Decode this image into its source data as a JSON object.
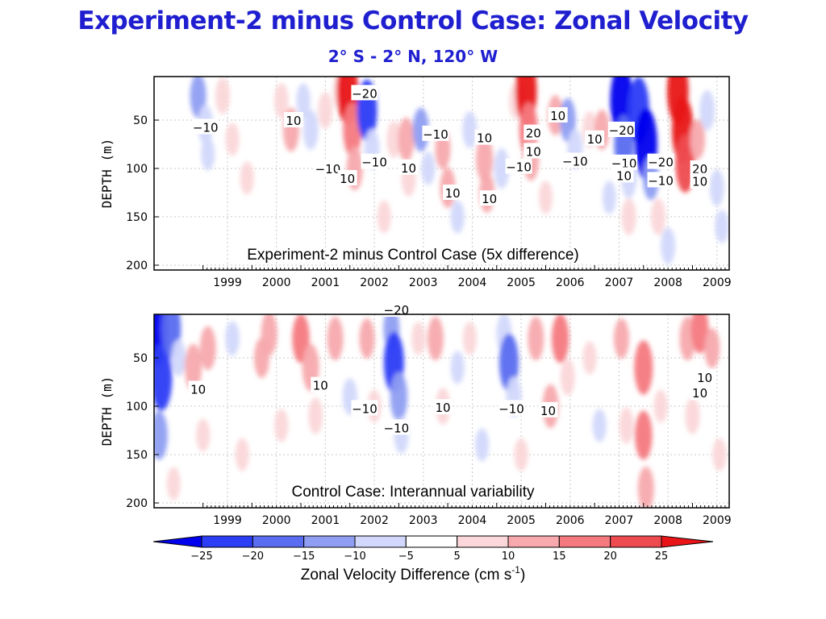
{
  "slide": {
    "title": "Experiment-2 minus Control Case:  Zonal Velocity",
    "subtitle": "2° S - 2° N, 120° W"
  },
  "colorbar": {
    "levels": [
      -25,
      -20,
      -15,
      -10,
      -5,
      5,
      10,
      15,
      20,
      25
    ],
    "colors": [
      "#0000ee",
      "#2b3df5",
      "#5a6cf0",
      "#8f9ef2",
      "#d2d8fb",
      "#ffffff",
      "#fbd7d9",
      "#f7a9ad",
      "#f47a7f",
      "#ee4b50",
      "#e81418"
    ],
    "title_main": "Zonal Velocity Difference (cm s",
    "title_sup": "-1",
    "title_end": ")"
  },
  "chart_data": [
    {
      "type": "heatmap",
      "annotation": "Experiment-2 minus Control Case (5x difference)",
      "ylabel": "DEPTH (m)",
      "xlabel": "",
      "x_ticks": [
        "1999",
        "2000",
        "2001",
        "2002",
        "2003",
        "2004",
        "2005",
        "2006",
        "2007",
        "2008",
        "2009"
      ],
      "y_ticks": [
        50,
        100,
        150,
        200
      ],
      "xlim": [
        1998.0,
        2009.75
      ],
      "ylim": [
        205,
        5
      ],
      "grid": true,
      "cells": [
        {
          "x": 1998.9,
          "depth": 25,
          "value": -12
        },
        {
          "x": 1999.05,
          "depth": 55,
          "value": -10
        },
        {
          "x": 1999.1,
          "depth": 85,
          "value": -6
        },
        {
          "x": 1999.4,
          "depth": 25,
          "value": 8
        },
        {
          "x": 1999.6,
          "depth": 70,
          "value": 6
        },
        {
          "x": 1999.9,
          "depth": 110,
          "value": 6
        },
        {
          "x": 2000.6,
          "depth": 30,
          "value": 7
        },
        {
          "x": 2000.8,
          "depth": 60,
          "value": 12
        },
        {
          "x": 2001.05,
          "depth": 30,
          "value": -7
        },
        {
          "x": 2001.2,
          "depth": 60,
          "value": -10
        },
        {
          "x": 2001.5,
          "depth": 40,
          "value": 8
        },
        {
          "x": 2001.8,
          "depth": 20,
          "value": 8
        },
        {
          "x": 2001.95,
          "depth": 20,
          "value": 25
        },
        {
          "x": 2002.05,
          "depth": 60,
          "value": 18
        },
        {
          "x": 2002.1,
          "depth": 100,
          "value": 12
        },
        {
          "x": 2002.35,
          "depth": 40,
          "value": -22
        },
        {
          "x": 2002.45,
          "depth": 80,
          "value": -10
        },
        {
          "x": 2002.7,
          "depth": 150,
          "value": 6
        },
        {
          "x": 2002.9,
          "depth": 70,
          "value": 8
        },
        {
          "x": 2003.15,
          "depth": 70,
          "value": 12
        },
        {
          "x": 2003.2,
          "depth": 110,
          "value": 8
        },
        {
          "x": 2003.45,
          "depth": 60,
          "value": -12
        },
        {
          "x": 2003.6,
          "depth": 100,
          "value": -6
        },
        {
          "x": 2003.9,
          "depth": 80,
          "value": 10
        },
        {
          "x": 2004.0,
          "depth": 120,
          "value": 10
        },
        {
          "x": 2004.2,
          "depth": 150,
          "value": -6
        },
        {
          "x": 2004.45,
          "depth": 60,
          "value": -8
        },
        {
          "x": 2004.75,
          "depth": 90,
          "value": 14
        },
        {
          "x": 2004.8,
          "depth": 125,
          "value": 10
        },
        {
          "x": 2005.1,
          "depth": 100,
          "value": -10
        },
        {
          "x": 2005.4,
          "depth": 30,
          "value": 8
        },
        {
          "x": 2005.6,
          "depth": 20,
          "value": 25
        },
        {
          "x": 2005.65,
          "depth": 60,
          "value": 18
        },
        {
          "x": 2005.7,
          "depth": 90,
          "value": 12
        },
        {
          "x": 2006.0,
          "depth": 130,
          "value": 6
        },
        {
          "x": 2006.2,
          "depth": 45,
          "value": 10
        },
        {
          "x": 2006.45,
          "depth": 50,
          "value": -12
        },
        {
          "x": 2006.6,
          "depth": 80,
          "value": -10
        },
        {
          "x": 2006.9,
          "depth": 60,
          "value": 8
        },
        {
          "x": 2007.15,
          "depth": 60,
          "value": 10
        },
        {
          "x": 2007.3,
          "depth": 130,
          "value": -6
        },
        {
          "x": 2007.55,
          "depth": 30,
          "value": -28
        },
        {
          "x": 2007.6,
          "depth": 75,
          "value": -20
        },
        {
          "x": 2007.7,
          "depth": 110,
          "value": -10
        },
        {
          "x": 2007.7,
          "depth": 150,
          "value": 8
        },
        {
          "x": 2007.9,
          "depth": 40,
          "value": -25
        },
        {
          "x": 2008.05,
          "depth": 75,
          "value": -28
        },
        {
          "x": 2008.15,
          "depth": 110,
          "value": -12
        },
        {
          "x": 2008.3,
          "depth": 150,
          "value": 8
        },
        {
          "x": 2008.5,
          "depth": 180,
          "value": -8
        },
        {
          "x": 2008.7,
          "depth": 20,
          "value": 25
        },
        {
          "x": 2008.8,
          "depth": 60,
          "value": 25
        },
        {
          "x": 2008.85,
          "depth": 95,
          "value": 20
        },
        {
          "x": 2009.1,
          "depth": 70,
          "value": 10
        },
        {
          "x": 2009.3,
          "depth": 40,
          "value": -10
        },
        {
          "x": 2009.5,
          "depth": 120,
          "value": -8
        },
        {
          "x": 2009.6,
          "depth": 160,
          "value": -6
        }
      ],
      "contour_labels": [
        {
          "x": 1999.05,
          "depth": 57,
          "text": "−10"
        },
        {
          "x": 2000.85,
          "depth": 50,
          "text": "10"
        },
        {
          "x": 2002.3,
          "depth": 22,
          "text": "−20"
        },
        {
          "x": 2001.55,
          "depth": 100,
          "text": "−10"
        },
        {
          "x": 2001.95,
          "depth": 110,
          "text": "10"
        },
        {
          "x": 2002.5,
          "depth": 93,
          "text": "−10"
        },
        {
          "x": 2003.2,
          "depth": 99,
          "text": "10"
        },
        {
          "x": 2003.75,
          "depth": 64,
          "text": "−10"
        },
        {
          "x": 2004.1,
          "depth": 125,
          "text": "10"
        },
        {
          "x": 2004.75,
          "depth": 68,
          "text": "10"
        },
        {
          "x": 2005.45,
          "depth": 98,
          "text": "−10"
        },
        {
          "x": 2004.85,
          "depth": 131,
          "text": "10"
        },
        {
          "x": 2005.75,
          "depth": 63,
          "text": "20"
        },
        {
          "x": 2005.75,
          "depth": 82,
          "text": "10"
        },
        {
          "x": 2006.25,
          "depth": 45,
          "text": "10"
        },
        {
          "x": 2006.6,
          "depth": 92,
          "text": "−10"
        },
        {
          "x": 2007.0,
          "depth": 69,
          "text": "10"
        },
        {
          "x": 2007.55,
          "depth": 60,
          "text": "−20"
        },
        {
          "x": 2007.6,
          "depth": 94,
          "text": "−10"
        },
        {
          "x": 2007.6,
          "depth": 107,
          "text": "10"
        },
        {
          "x": 2008.35,
          "depth": 93,
          "text": "−20"
        },
        {
          "x": 2008.35,
          "depth": 112,
          "text": "−10"
        },
        {
          "x": 2009.15,
          "depth": 100,
          "text": "20"
        },
        {
          "x": 2009.15,
          "depth": 113,
          "text": "10"
        }
      ]
    },
    {
      "type": "heatmap",
      "annotation": "Control Case:  Interannual variability",
      "ylabel": "DEPTH (m)",
      "xlabel": "",
      "x_ticks": [
        "1999",
        "2000",
        "2001",
        "2002",
        "2003",
        "2004",
        "2005",
        "2006",
        "2007",
        "2008",
        "2009"
      ],
      "y_ticks": [
        50,
        100,
        150,
        200
      ],
      "xlim": [
        1998.0,
        2009.75
      ],
      "ylim": [
        205,
        5
      ],
      "grid": true,
      "cells": [
        {
          "x": 1998.05,
          "depth": 20,
          "value": -30
        },
        {
          "x": 1998.15,
          "depth": 70,
          "value": -25
        },
        {
          "x": 1998.1,
          "depth": 130,
          "value": -15
        },
        {
          "x": 1998.35,
          "depth": 20,
          "value": -20
        },
        {
          "x": 1998.5,
          "depth": 50,
          "value": -8
        },
        {
          "x": 1998.4,
          "depth": 180,
          "value": 6
        },
        {
          "x": 1998.8,
          "depth": 60,
          "value": 14
        },
        {
          "x": 1999.1,
          "depth": 40,
          "value": 12
        },
        {
          "x": 1999.0,
          "depth": 130,
          "value": 6
        },
        {
          "x": 1999.6,
          "depth": 30,
          "value": -7
        },
        {
          "x": 1999.8,
          "depth": 150,
          "value": 6
        },
        {
          "x": 2000.2,
          "depth": 50,
          "value": 10
        },
        {
          "x": 2000.35,
          "depth": 25,
          "value": 12
        },
        {
          "x": 2000.6,
          "depth": 120,
          "value": 6
        },
        {
          "x": 2001.0,
          "depth": 30,
          "value": 15
        },
        {
          "x": 2001.2,
          "depth": 60,
          "value": 14
        },
        {
          "x": 2001.3,
          "depth": 110,
          "value": 8
        },
        {
          "x": 2001.7,
          "depth": 30,
          "value": 12
        },
        {
          "x": 2002.0,
          "depth": 90,
          "value": -8
        },
        {
          "x": 2002.35,
          "depth": 30,
          "value": 10
        },
        {
          "x": 2002.5,
          "depth": 100,
          "value": 6
        },
        {
          "x": 2002.85,
          "depth": 20,
          "value": -12
        },
        {
          "x": 2002.9,
          "depth": 55,
          "value": -22
        },
        {
          "x": 2003.0,
          "depth": 90,
          "value": -15
        },
        {
          "x": 2003.05,
          "depth": 130,
          "value": -8
        },
        {
          "x": 2003.4,
          "depth": 30,
          "value": 6
        },
        {
          "x": 2003.75,
          "depth": 30,
          "value": 12
        },
        {
          "x": 2003.9,
          "depth": 100,
          "value": 8
        },
        {
          "x": 2004.2,
          "depth": 60,
          "value": -6
        },
        {
          "x": 2004.45,
          "depth": 30,
          "value": 6
        },
        {
          "x": 2004.7,
          "depth": 140,
          "value": -6
        },
        {
          "x": 2005.15,
          "depth": 25,
          "value": -10
        },
        {
          "x": 2005.25,
          "depth": 55,
          "value": -20
        },
        {
          "x": 2005.35,
          "depth": 90,
          "value": -10
        },
        {
          "x": 2005.5,
          "depth": 150,
          "value": 6
        },
        {
          "x": 2005.8,
          "depth": 30,
          "value": 12
        },
        {
          "x": 2006.1,
          "depth": 100,
          "value": 12
        },
        {
          "x": 2006.3,
          "depth": 30,
          "value": 15
        },
        {
          "x": 2006.45,
          "depth": 70,
          "value": 8
        },
        {
          "x": 2006.9,
          "depth": 50,
          "value": 6
        },
        {
          "x": 2007.1,
          "depth": 120,
          "value": -6
        },
        {
          "x": 2007.55,
          "depth": 30,
          "value": 10
        },
        {
          "x": 2007.65,
          "depth": 120,
          "value": 8
        },
        {
          "x": 2008.0,
          "depth": 60,
          "value": 18
        },
        {
          "x": 2008.0,
          "depth": 130,
          "value": 15
        },
        {
          "x": 2008.05,
          "depth": 185,
          "value": 12
        },
        {
          "x": 2008.35,
          "depth": 100,
          "value": 6
        },
        {
          "x": 2008.9,
          "depth": 30,
          "value": 12
        },
        {
          "x": 2009.15,
          "depth": 20,
          "value": 15
        },
        {
          "x": 2009.0,
          "depth": 110,
          "value": 8
        },
        {
          "x": 2009.4,
          "depth": 40,
          "value": 10
        },
        {
          "x": 2009.55,
          "depth": 150,
          "value": 6
        }
      ],
      "contour_labels": [
        {
          "x": 2002.95,
          "depth": 0,
          "text": "−20"
        },
        {
          "x": 1998.9,
          "depth": 82,
          "text": "10"
        },
        {
          "x": 2001.4,
          "depth": 78,
          "text": "10"
        },
        {
          "x": 2002.3,
          "depth": 102,
          "text": "−10"
        },
        {
          "x": 2002.95,
          "depth": 122,
          "text": "−10"
        },
        {
          "x": 2003.9,
          "depth": 101,
          "text": "10"
        },
        {
          "x": 2005.3,
          "depth": 102,
          "text": "−10"
        },
        {
          "x": 2006.05,
          "depth": 104,
          "text": "10"
        },
        {
          "x": 2009.25,
          "depth": 70,
          "text": "10"
        },
        {
          "x": 2009.15,
          "depth": 86,
          "text": "10"
        }
      ]
    }
  ]
}
